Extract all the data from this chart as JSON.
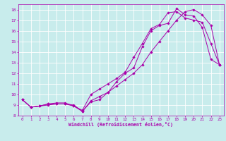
{
  "xlabel": "Windchill (Refroidissement éolien,°C)",
  "bg_color": "#c8ecec",
  "line_color": "#aa00aa",
  "grid_color": "#ffffff",
  "xlim": [
    -0.5,
    23.5
  ],
  "ylim": [
    8,
    18.5
  ],
  "xticks": [
    0,
    1,
    2,
    3,
    4,
    5,
    6,
    7,
    8,
    9,
    10,
    11,
    12,
    13,
    14,
    15,
    16,
    17,
    18,
    19,
    20,
    21,
    22,
    23
  ],
  "yticks": [
    8,
    9,
    10,
    11,
    12,
    13,
    14,
    15,
    16,
    17,
    18
  ],
  "line1_x": [
    0,
    1,
    2,
    3,
    4,
    5,
    6,
    7,
    8,
    9,
    10,
    11,
    12,
    13,
    14,
    15,
    16,
    17,
    18,
    19,
    20,
    21,
    22,
    23
  ],
  "line1_y": [
    9.5,
    8.8,
    8.9,
    9.1,
    9.1,
    9.1,
    8.9,
    8.4,
    9.3,
    9.5,
    10.2,
    11.2,
    12.0,
    12.5,
    14.5,
    16.0,
    16.5,
    16.7,
    18.1,
    17.5,
    17.4,
    16.3,
    13.3,
    12.8
  ],
  "line2_x": [
    0,
    1,
    2,
    3,
    4,
    5,
    6,
    7,
    8,
    9,
    10,
    11,
    12,
    13,
    14,
    15,
    16,
    17,
    18,
    19,
    20,
    21,
    22,
    23
  ],
  "line2_y": [
    9.5,
    8.8,
    8.9,
    9.1,
    9.2,
    9.2,
    8.9,
    8.5,
    10.0,
    10.5,
    11.0,
    11.5,
    12.1,
    13.5,
    14.8,
    16.2,
    16.6,
    17.7,
    17.8,
    17.2,
    17.0,
    16.8,
    14.8,
    12.8
  ],
  "line3_x": [
    0,
    1,
    2,
    3,
    4,
    5,
    6,
    7,
    8,
    9,
    10,
    11,
    12,
    13,
    14,
    15,
    16,
    17,
    18,
    19,
    20,
    21,
    22,
    23
  ],
  "line3_y": [
    9.5,
    8.8,
    8.9,
    9.0,
    9.1,
    9.1,
    9.0,
    8.4,
    9.4,
    9.8,
    10.2,
    10.8,
    11.4,
    12.0,
    12.8,
    14.0,
    15.0,
    16.0,
    17.0,
    17.8,
    18.0,
    17.5,
    16.5,
    12.8
  ]
}
